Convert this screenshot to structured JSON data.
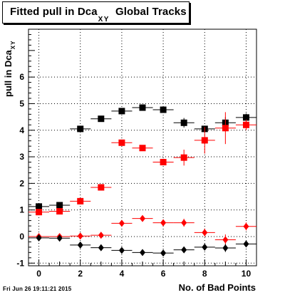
{
  "title": {
    "main": "Fitted pull in Dca",
    "sub": "XY",
    "suffix": "Global Tracks"
  },
  "footer": "Fri Jun 26 19:11:21 2015",
  "chart_data": {
    "type": "scatter",
    "xlabel": "No. of Bad Points",
    "ylabel": {
      "main": "pull in Dca",
      "sub": "XY"
    },
    "xlim": [
      -0.5,
      10.5
    ],
    "ylim": [
      -1.1,
      7.8
    ],
    "xticks": [
      0,
      2,
      4,
      6,
      8,
      10
    ],
    "yticks": [
      -1,
      0,
      1,
      2,
      3,
      4,
      5,
      6
    ],
    "grid": true,
    "series": [
      {
        "marker": "square",
        "color": "#000000",
        "x": [
          0,
          1,
          2,
          3,
          4,
          5,
          6,
          7,
          8,
          9,
          10
        ],
        "y": [
          1.13,
          1.18,
          4.05,
          4.43,
          4.72,
          4.85,
          4.77,
          4.28,
          4.05,
          4.28,
          4.48
        ],
        "yerr": [
          0.05,
          0.05,
          0.05,
          0.05,
          0.1,
          0.1,
          0.12,
          0.18,
          0.1,
          0.22,
          0.15
        ]
      },
      {
        "marker": "square",
        "color": "#ff0000",
        "x": [
          0,
          1,
          2,
          3,
          4,
          5,
          6,
          7,
          8,
          9,
          10
        ],
        "y": [
          0.92,
          0.95,
          1.33,
          1.85,
          3.53,
          3.33,
          2.8,
          2.97,
          3.62,
          4.08,
          4.2
        ],
        "yerr": [
          0.05,
          0.05,
          0.05,
          0.05,
          0.08,
          0.1,
          0.12,
          0.3,
          0.5,
          0.6,
          0.2
        ]
      },
      {
        "marker": "diamond",
        "color": "#ff0000",
        "x": [
          0,
          1,
          2,
          3,
          4,
          5,
          6,
          7,
          8,
          9,
          10
        ],
        "y": [
          0.0,
          0.0,
          0.02,
          0.05,
          0.5,
          0.68,
          0.52,
          0.52,
          0.15,
          -0.12,
          0.38
        ],
        "yerr": [
          0.05,
          0.05,
          0.05,
          0.05,
          0.05,
          0.08,
          0.12,
          0.15,
          0.15,
          0.2,
          0.15
        ]
      },
      {
        "marker": "diamond",
        "color": "#000000",
        "x": [
          0,
          1,
          2,
          3,
          4,
          5,
          6,
          7,
          8,
          9,
          10
        ],
        "y": [
          -0.05,
          -0.06,
          -0.32,
          -0.42,
          -0.52,
          -0.6,
          -0.62,
          -0.5,
          -0.4,
          -0.43,
          -0.28
        ],
        "yerr": [
          0.03,
          0.03,
          0.05,
          0.05,
          0.05,
          0.05,
          0.08,
          0.1,
          0.12,
          0.15,
          0.12
        ]
      }
    ]
  }
}
